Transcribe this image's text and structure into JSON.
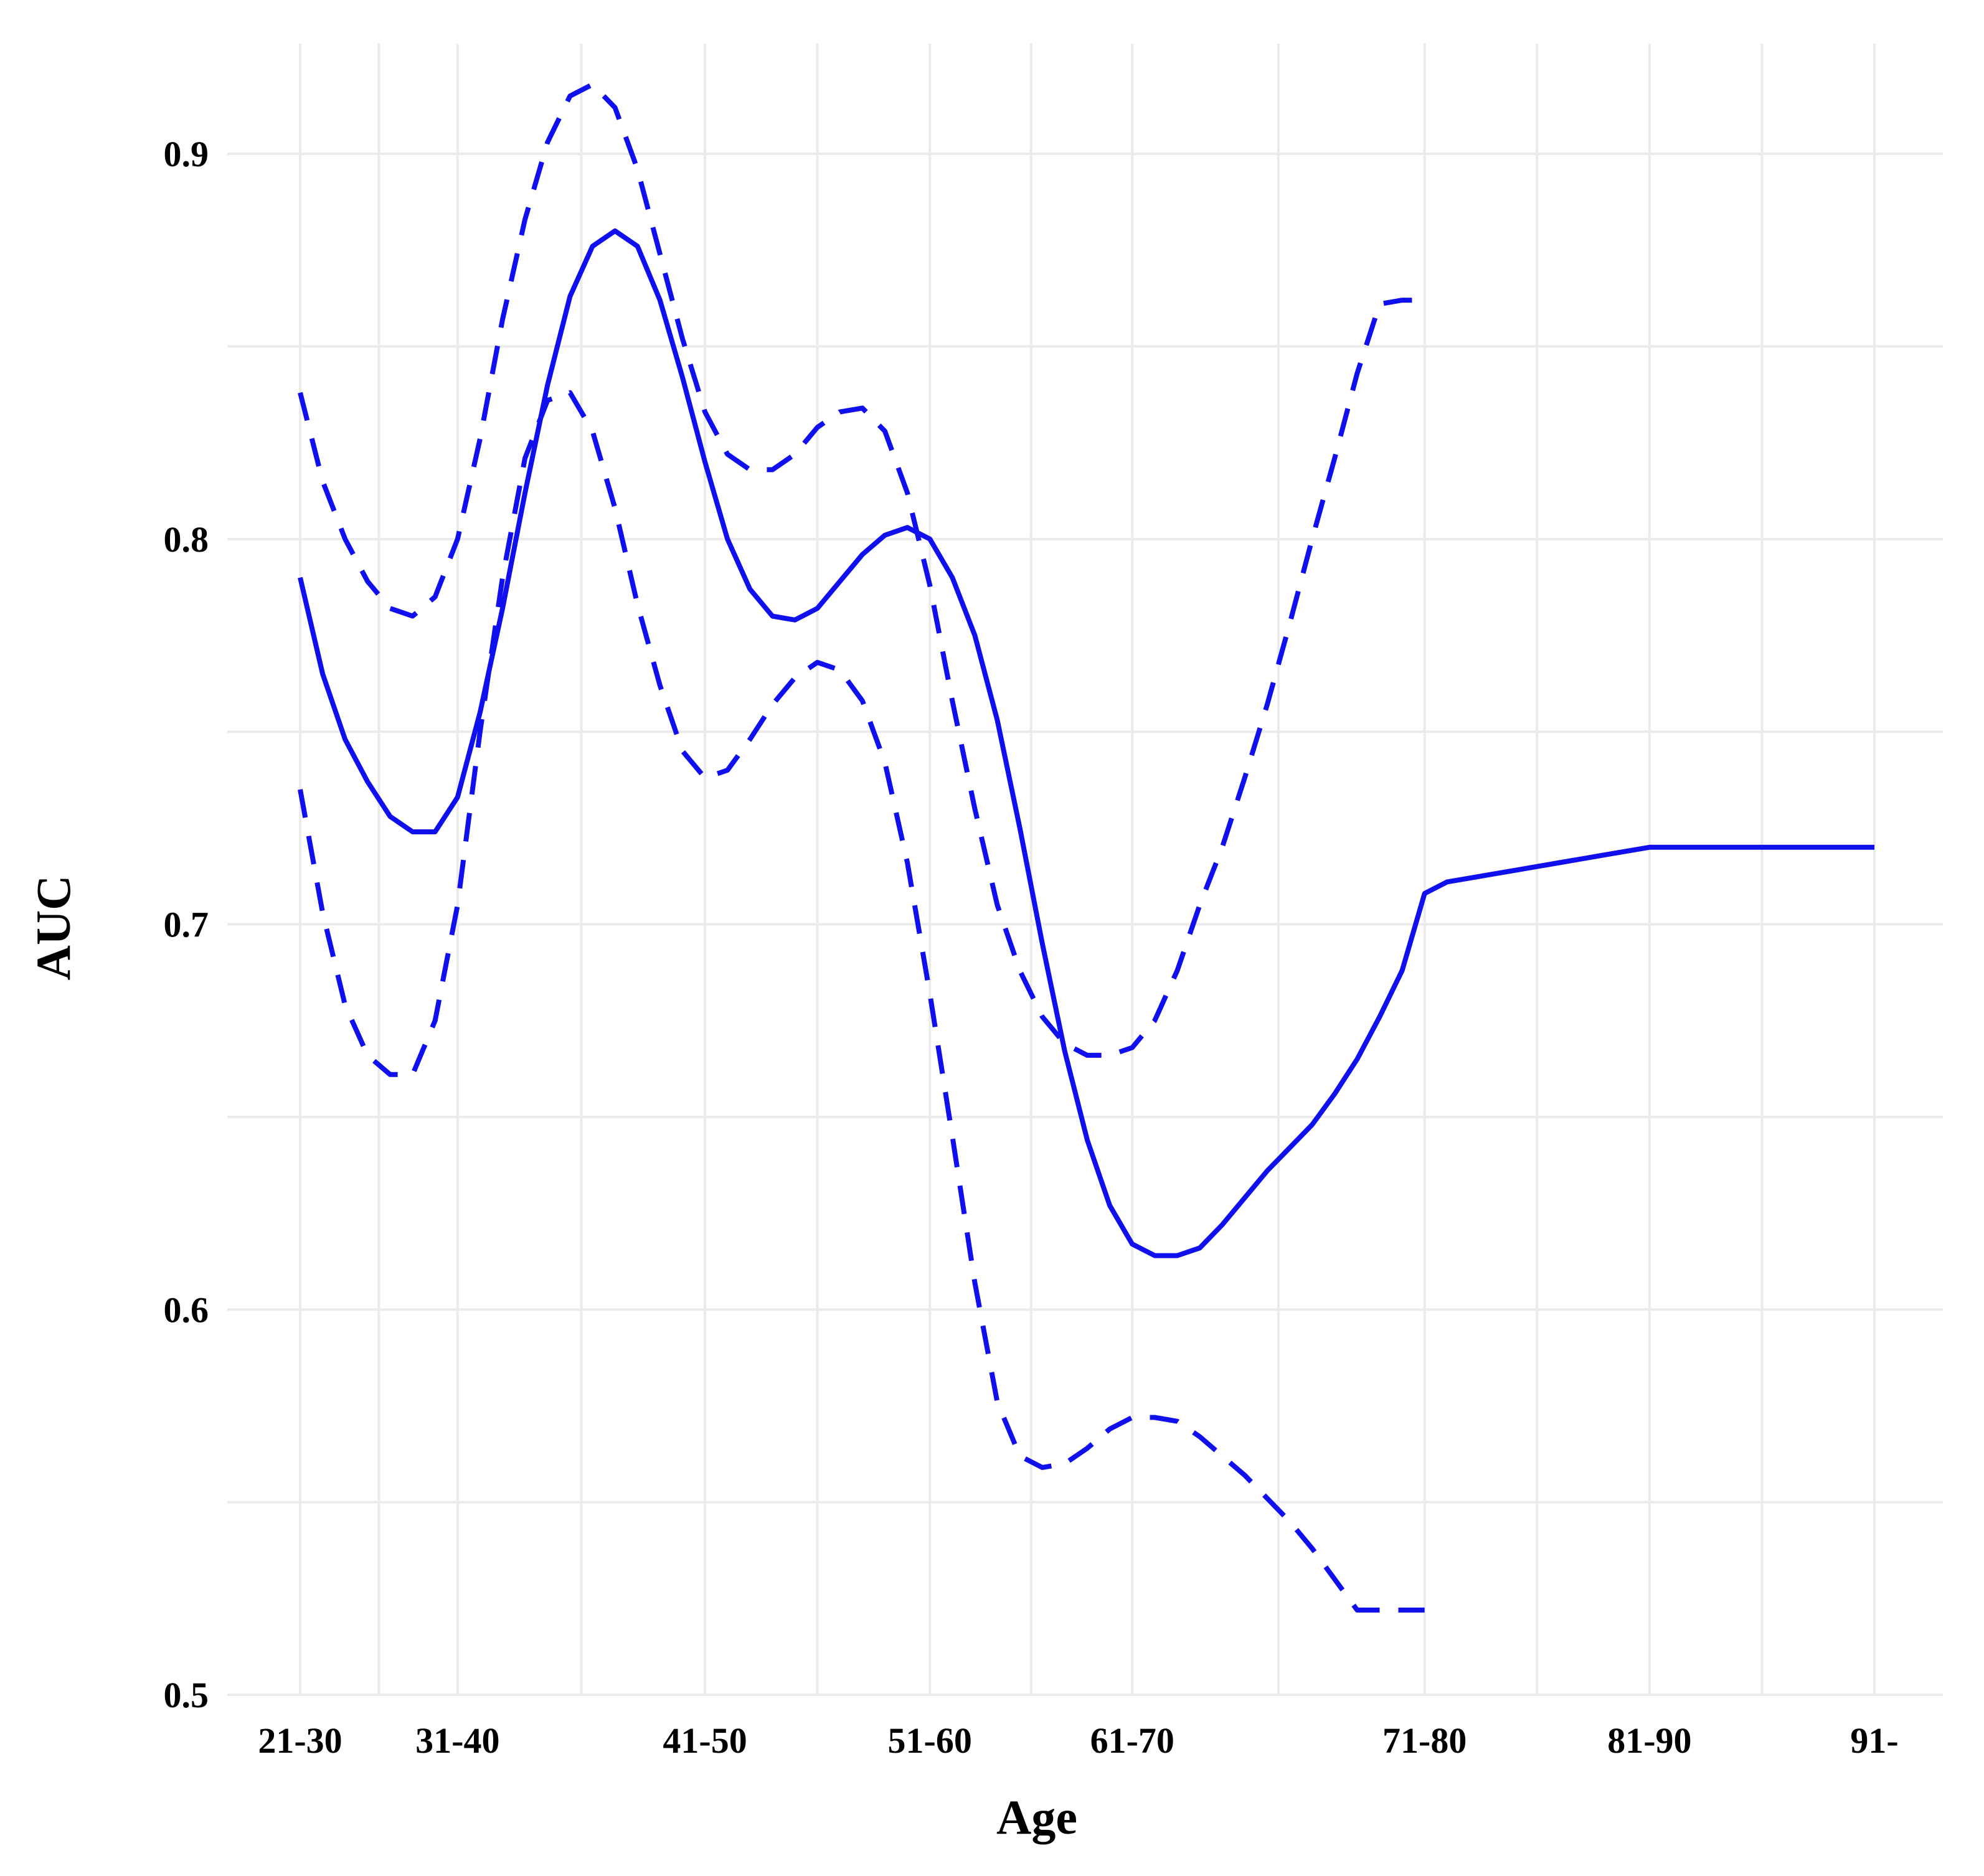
{
  "chart_data": {
    "type": "line",
    "title": "",
    "xlabel": "Age",
    "ylabel": "AUC",
    "categories": [
      "21-30",
      "31-40",
      "41-50",
      "51-60",
      "61-70",
      "71-80",
      "81-90",
      "91-"
    ],
    "x_range": [
      21,
      91
    ],
    "x_tick_positions": [
      21,
      28,
      39,
      49,
      58,
      71,
      81,
      91
    ],
    "ylim": [
      0.5,
      0.93
    ],
    "y_ticks": [
      0.5,
      0.6,
      0.7,
      0.8,
      0.9
    ],
    "y_tick_labels": [
      "0.5",
      "0.6",
      "0.7",
      "0.8",
      "0.9"
    ],
    "grid": true,
    "legend": "none",
    "series": [
      {
        "style": "solid",
        "color": "#1010ee",
        "x": [
          21,
          22,
          23,
          24,
          25,
          26,
          27,
          28,
          29,
          30,
          31,
          32,
          33,
          34,
          35,
          36,
          37,
          38,
          39,
          40,
          41,
          42,
          43,
          44,
          45,
          46,
          47,
          48,
          49,
          50,
          51,
          52,
          53,
          54,
          55,
          56,
          57,
          58,
          59,
          60,
          61,
          62,
          63,
          64,
          65,
          66,
          67,
          68,
          69,
          70,
          71,
          72,
          73,
          74,
          75,
          76,
          77,
          78,
          79,
          80,
          81,
          82,
          83,
          84,
          85,
          86,
          87,
          88,
          89,
          90,
          91
        ],
        "y": [
          0.79,
          0.765,
          0.748,
          0.737,
          0.728,
          0.724,
          0.724,
          0.733,
          0.755,
          0.782,
          0.812,
          0.84,
          0.863,
          0.876,
          0.88,
          0.876,
          0.862,
          0.842,
          0.82,
          0.8,
          0.787,
          0.78,
          0.779,
          0.782,
          0.789,
          0.796,
          0.801,
          0.803,
          0.8,
          0.79,
          0.775,
          0.753,
          0.725,
          0.695,
          0.667,
          0.644,
          0.627,
          0.617,
          0.614,
          0.614,
          0.616,
          0.622,
          0.629,
          0.636,
          0.642,
          0.648,
          0.656,
          0.665,
          0.676,
          0.688,
          0.708,
          0.711,
          0.712,
          0.713,
          0.714,
          0.715,
          0.716,
          0.717,
          0.718,
          0.719,
          0.72,
          0.72,
          0.72,
          0.72,
          0.72,
          0.72,
          0.72,
          0.72,
          0.72,
          0.72,
          0.72
        ]
      },
      {
        "style": "dashed",
        "color": "#1010ee",
        "x": [
          21,
          22,
          23,
          24,
          25,
          26,
          27,
          28,
          29,
          30,
          31,
          32,
          33,
          34,
          35,
          36,
          37,
          38,
          39,
          40,
          41,
          42,
          43,
          44,
          45,
          46,
          47,
          48,
          49,
          50,
          51,
          52,
          53,
          54,
          55,
          56,
          57,
          58,
          59,
          60,
          61,
          62,
          63,
          64,
          65,
          66,
          67,
          68,
          69,
          70,
          71
        ],
        "y": [
          0.838,
          0.815,
          0.8,
          0.789,
          0.782,
          0.78,
          0.785,
          0.8,
          0.826,
          0.857,
          0.883,
          0.903,
          0.915,
          0.918,
          0.912,
          0.896,
          0.874,
          0.852,
          0.833,
          0.822,
          0.818,
          0.818,
          0.822,
          0.829,
          0.833,
          0.834,
          0.828,
          0.812,
          0.788,
          0.758,
          0.73,
          0.705,
          0.688,
          0.676,
          0.669,
          0.666,
          0.666,
          0.668,
          0.675,
          0.688,
          0.705,
          0.72,
          0.738,
          0.757,
          0.778,
          0.8,
          0.821,
          0.843,
          0.861,
          0.862,
          0.862
        ]
      },
      {
        "style": "dashed",
        "color": "#1010ee",
        "x": [
          21,
          22,
          23,
          24,
          25,
          26,
          27,
          28,
          29,
          30,
          31,
          32,
          33,
          34,
          35,
          36,
          37,
          38,
          39,
          40,
          41,
          42,
          43,
          44,
          45,
          46,
          47,
          48,
          49,
          50,
          51,
          52,
          53,
          54,
          55,
          56,
          57,
          58,
          59,
          60,
          61,
          62,
          63,
          64,
          65,
          66,
          67,
          68,
          69,
          70,
          71
        ],
        "y": [
          0.735,
          0.703,
          0.679,
          0.666,
          0.661,
          0.661,
          0.675,
          0.705,
          0.75,
          0.79,
          0.821,
          0.836,
          0.838,
          0.828,
          0.808,
          0.783,
          0.762,
          0.745,
          0.738,
          0.74,
          0.748,
          0.757,
          0.764,
          0.768,
          0.766,
          0.758,
          0.742,
          0.716,
          0.682,
          0.645,
          0.607,
          0.576,
          0.562,
          0.559,
          0.56,
          0.564,
          0.569,
          0.572,
          0.572,
          0.571,
          0.567,
          0.562,
          0.557,
          0.551,
          0.545,
          0.538,
          0.53,
          0.522,
          0.522,
          0.522,
          0.522
        ]
      }
    ]
  }
}
